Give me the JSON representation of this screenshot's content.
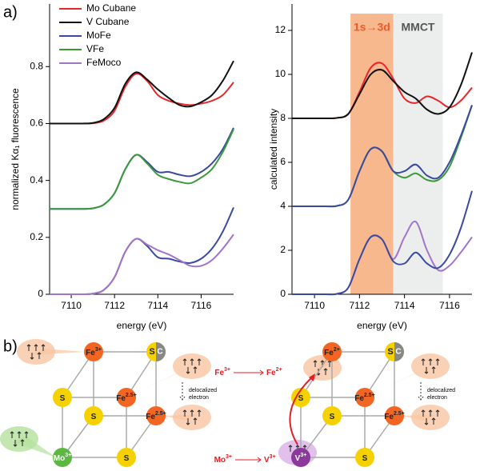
{
  "panel_labels": [
    "a)",
    "b)"
  ],
  "chart_data": [
    {
      "type": "line",
      "xlabel": "energy (eV)",
      "ylabel": "normalized Kα₁ fluorescence",
      "xlim": [
        7109,
        7117.5
      ],
      "ylim": [
        0,
        1.02
      ],
      "xticks": [
        7110,
        7112,
        7114,
        7116
      ],
      "yticks": [
        0,
        0.2,
        0.4,
        0.6,
        0.8
      ],
      "legend": "upper left",
      "x": [
        7109,
        7109.5,
        7110,
        7110.5,
        7111,
        7111.5,
        7112,
        7112.5,
        7113,
        7113.5,
        7114,
        7114.5,
        7115,
        7115.5,
        7116,
        7116.5,
        7117,
        7117.5
      ],
      "series": [
        {
          "name": "Mo Cubane",
          "color": "#e8262a",
          "values": [
            0.6,
            0.6,
            0.6,
            0.6,
            0.601,
            0.61,
            0.645,
            0.73,
            0.775,
            0.75,
            0.7,
            0.68,
            0.67,
            0.665,
            0.67,
            0.68,
            0.7,
            0.745
          ]
        },
        {
          "name": "V Cubane",
          "color": "#111111",
          "values": [
            0.6,
            0.6,
            0.6,
            0.6,
            0.602,
            0.615,
            0.655,
            0.74,
            0.78,
            0.755,
            0.72,
            0.69,
            0.665,
            0.66,
            0.675,
            0.7,
            0.75,
            0.82
          ]
        },
        {
          "name": "MoFe",
          "color": "#3a4aa0",
          "values": [
            0.3,
            0.3,
            0.3,
            0.3,
            0.302,
            0.315,
            0.355,
            0.44,
            0.49,
            0.465,
            0.43,
            0.43,
            0.42,
            0.415,
            0.43,
            0.46,
            0.51,
            0.585
          ]
        },
        {
          "name": "VFe",
          "color": "#3a9a3a",
          "values": [
            0.3,
            0.3,
            0.3,
            0.3,
            0.302,
            0.315,
            0.355,
            0.44,
            0.49,
            0.46,
            0.42,
            0.405,
            0.395,
            0.39,
            0.41,
            0.44,
            0.5,
            0.58
          ]
        },
        {
          "name": "MoFe",
          "color": "#3a4aa0",
          "values": [
            0,
            0,
            0,
            0,
            0.002,
            0.015,
            0.06,
            0.15,
            0.195,
            0.17,
            0.13,
            0.125,
            0.115,
            0.11,
            0.125,
            0.16,
            0.22,
            0.305
          ]
        },
        {
          "name": "FeMoco",
          "color": "#a275c9",
          "values": [
            0,
            0,
            0,
            0,
            0.002,
            0.015,
            0.06,
            0.15,
            0.195,
            0.175,
            0.155,
            0.14,
            0.12,
            0.1,
            0.1,
            0.12,
            0.16,
            0.21
          ]
        }
      ]
    },
    {
      "type": "line",
      "xlabel": "energy (eV)",
      "ylabel": "calculated intensity",
      "xlim": [
        7109,
        7117
      ],
      "ylim": [
        0,
        13.2
      ],
      "xticks": [
        7110,
        7112,
        7114,
        7116
      ],
      "yticks": [
        0,
        2,
        4,
        6,
        8,
        10,
        12
      ],
      "bands": [
        {
          "range": [
            7111.6,
            7113.5
          ],
          "color": "#f7b88e",
          "label": "1s→3d",
          "label_color": "#f05a28"
        },
        {
          "range": [
            7113.5,
            7115.7
          ],
          "color": "#eceeee",
          "label": "MMCT",
          "label_color": "#555555"
        }
      ],
      "x": [
        7109,
        7109.5,
        7110,
        7110.5,
        7111,
        7111.5,
        7112,
        7112.5,
        7113,
        7113.5,
        7114,
        7114.5,
        7115,
        7115.5,
        7116,
        7116.5,
        7117
      ],
      "series": [
        {
          "color": "#e8262a",
          "values": [
            8,
            8,
            8,
            8,
            8.02,
            8.2,
            9.2,
            10.3,
            10.5,
            9.8,
            8.9,
            8.7,
            9.0,
            8.8,
            8.5,
            8.8,
            9.4
          ]
        },
        {
          "color": "#111111",
          "values": [
            8,
            8,
            8,
            8,
            8.02,
            8.2,
            9.1,
            10.0,
            10.2,
            9.7,
            9.2,
            8.9,
            8.4,
            8.2,
            8.5,
            9.5,
            11.0
          ]
        },
        {
          "color": "#3a9a3a",
          "values": [
            4,
            4,
            4,
            4,
            4.02,
            4.3,
            5.6,
            6.6,
            6.5,
            5.6,
            5.3,
            5.5,
            5.2,
            5.2,
            5.8,
            7.1,
            8.6
          ]
        },
        {
          "color": "#3a4aa0",
          "values": [
            4,
            4,
            4,
            4,
            4.02,
            4.3,
            5.6,
            6.6,
            6.5,
            5.6,
            5.6,
            5.9,
            5.4,
            5.3,
            6.0,
            7.2,
            8.6
          ]
        },
        {
          "color": "#a275c9",
          "values": [
            0,
            0,
            0,
            0,
            0.02,
            0.3,
            1.6,
            2.6,
            2.5,
            1.6,
            2.6,
            3.3,
            2.0,
            1.1,
            1.3,
            1.9,
            2.6
          ]
        },
        {
          "color": "#3a4aa0",
          "values": [
            0,
            0,
            0,
            0,
            0.02,
            0.3,
            1.6,
            2.6,
            2.5,
            1.5,
            1.4,
            1.9,
            1.4,
            1.2,
            1.8,
            3.0,
            4.7
          ]
        }
      ]
    }
  ],
  "diagram": {
    "cubes": [
      {
        "nodes": [
          {
            "element": "Fe",
            "charge": "3+"
          },
          {
            "element": "S",
            "extra": "C"
          },
          {
            "element": "S"
          },
          {
            "element": "Fe",
            "charge": "2.5+"
          },
          {
            "element": "S"
          },
          {
            "element": "Fe",
            "charge": "2.5+"
          },
          {
            "element": "Mo",
            "charge": "3+"
          },
          {
            "element": "S"
          }
        ]
      },
      {
        "nodes": [
          {
            "element": "Fe",
            "charge": "2+"
          },
          {
            "element": "S",
            "extra": "C"
          },
          {
            "element": "S"
          },
          {
            "element": "Fe",
            "charge": "2.5+"
          },
          {
            "element": "S"
          },
          {
            "element": "Fe",
            "charge": "2.5+"
          },
          {
            "element": "V",
            "charge": "3+"
          },
          {
            "element": "S"
          }
        ]
      }
    ],
    "delocalized": [
      "delocalized",
      "electron"
    ],
    "transitions": [
      {
        "from": {
          "element": "Fe",
          "charge": "3+"
        },
        "to": {
          "element": "Fe",
          "charge": "2+"
        }
      },
      {
        "from": {
          "element": "Mo",
          "charge": "3+"
        },
        "to": {
          "element": "V",
          "charge": "3+"
        }
      }
    ]
  }
}
